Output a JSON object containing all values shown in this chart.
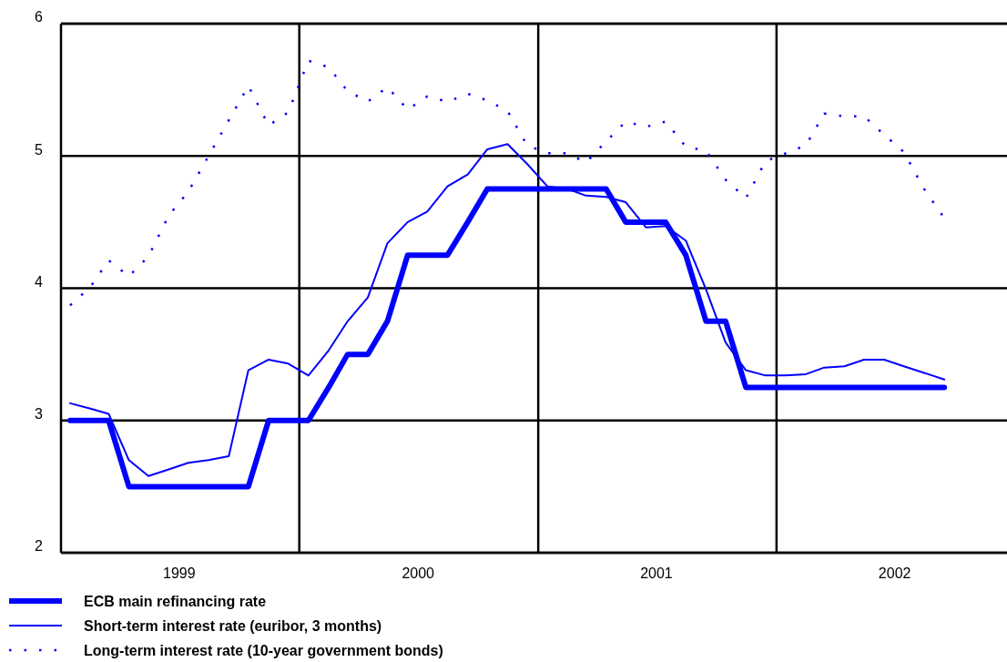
{
  "chart_data": {
    "type": "line",
    "x": [
      "1999-01-15",
      "1999-02-15",
      "1999-03-15",
      "1999-04-15",
      "1999-05-15",
      "1999-06-15",
      "1999-07-15",
      "1999-08-15",
      "1999-09-15",
      "1999-10-15",
      "1999-11-15",
      "1999-12-15",
      "2000-01-15",
      "2000-02-15",
      "2000-03-15",
      "2000-04-15",
      "2000-05-15",
      "2000-06-15",
      "2000-07-15",
      "2000-08-15",
      "2000-09-15",
      "2000-10-15",
      "2000-11-15",
      "2000-12-15",
      "2001-01-15",
      "2001-02-15",
      "2001-03-15",
      "2001-04-15",
      "2001-05-15",
      "2001-06-15",
      "2001-07-15",
      "2001-08-15",
      "2001-09-15",
      "2001-10-15",
      "2001-11-15",
      "2001-12-15",
      "2002-01-15",
      "2002-02-15",
      "2002-03-15",
      "2002-04-15",
      "2002-05-15",
      "2002-06-15",
      "2002-07-15",
      "2002-08-15",
      "2002-09-15"
    ],
    "series": [
      {
        "name": "ECB main refinancing rate",
        "color": "#0000ff",
        "line_style": "solid",
        "values": [
          3.0,
          3.0,
          3.0,
          2.5,
          2.5,
          2.5,
          2.5,
          2.5,
          2.5,
          2.5,
          3.0,
          3.0,
          3.0,
          3.25,
          3.5,
          3.5,
          3.75,
          4.25,
          4.25,
          4.25,
          4.5,
          4.75,
          4.75,
          4.75,
          4.75,
          4.75,
          4.75,
          4.75,
          4.5,
          4.5,
          4.5,
          4.25,
          3.75,
          3.75,
          3.25,
          3.25,
          3.25,
          3.25,
          3.25,
          3.25,
          3.25,
          3.25,
          3.25,
          3.25,
          3.25
        ]
      },
      {
        "name": "Short-term interest rate (euribor, 3 months)",
        "color": "#0000ff",
        "line_style": "solid",
        "values": [
          3.13,
          3.09,
          3.05,
          2.7,
          2.58,
          2.63,
          2.68,
          2.7,
          2.73,
          3.38,
          3.46,
          3.43,
          3.34,
          3.53,
          3.75,
          3.93,
          4.34,
          4.5,
          4.58,
          4.77,
          4.86,
          5.05,
          5.09,
          4.94,
          4.77,
          4.75,
          4.7,
          4.69,
          4.65,
          4.46,
          4.47,
          4.36,
          3.99,
          3.59,
          3.38,
          3.34,
          3.34,
          3.35,
          3.4,
          3.41,
          3.46,
          3.46,
          3.41,
          3.36,
          3.31
        ]
      },
      {
        "name": "Long-term interest rate (10-year government bonds)",
        "color": "#0000ff",
        "line_style": "dotted",
        "values": [
          3.87,
          4.01,
          4.21,
          4.09,
          4.24,
          4.55,
          4.73,
          5.0,
          5.27,
          5.53,
          5.23,
          5.33,
          5.72,
          5.67,
          5.49,
          5.41,
          5.52,
          5.35,
          5.45,
          5.41,
          5.47,
          5.42,
          5.34,
          5.08,
          5.02,
          5.02,
          4.95,
          5.11,
          5.26,
          5.22,
          5.26,
          5.07,
          5.04,
          4.82,
          4.68,
          4.96,
          5.02,
          5.08,
          5.32,
          5.3,
          5.3,
          5.16,
          5.03,
          4.75,
          4.53
        ]
      }
    ],
    "xlim": [
      "1999-01-01",
      "2002-12-20"
    ],
    "xticks": [
      {
        "value": "1999-07-01",
        "label": "1999"
      },
      {
        "value": "2000-01-01",
        "label": null
      },
      {
        "value": "2000-07-01",
        "label": "2000"
      },
      {
        "value": "2001-01-01",
        "label": null
      },
      {
        "value": "2001-07-01",
        "label": "2001"
      },
      {
        "value": "2002-01-01",
        "label": null
      },
      {
        "value": "2002-07-01",
        "label": "2002"
      }
    ],
    "ylim": [
      2,
      6
    ],
    "yticks": [
      2,
      3,
      4,
      5,
      6
    ],
    "grid": true,
    "legend": "bottom"
  }
}
